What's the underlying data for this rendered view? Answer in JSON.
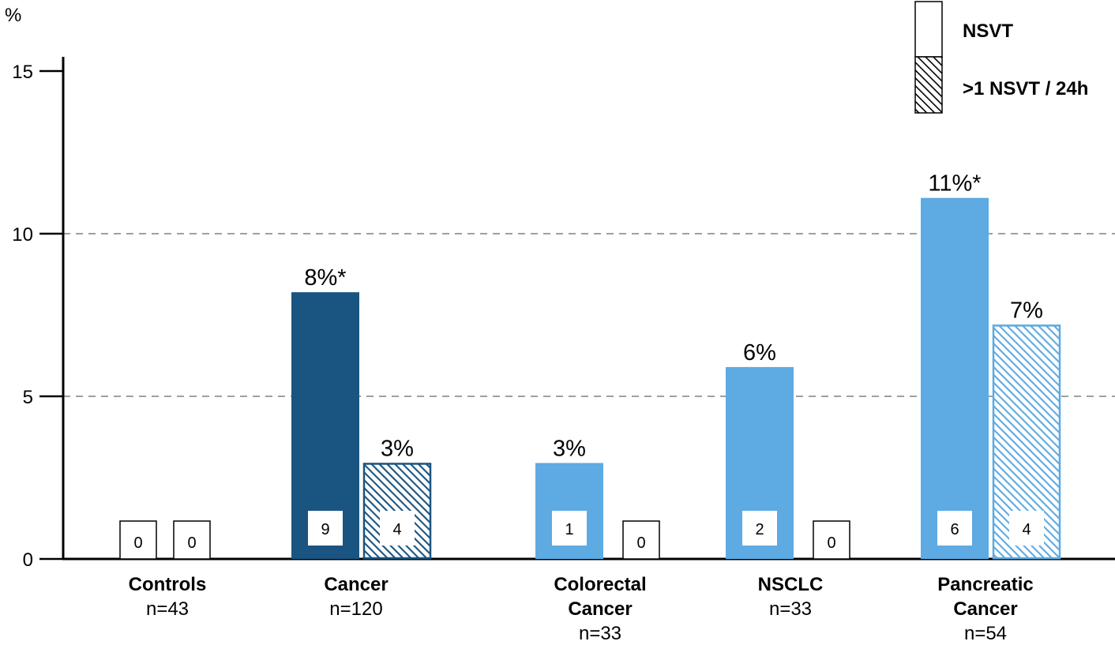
{
  "chart_data": {
    "type": "bar",
    "y_unit": "%",
    "ylim": [
      0,
      15
    ],
    "yticks": [
      0,
      5,
      10,
      15
    ],
    "gridlines": [
      5,
      10
    ],
    "grid": "dashed horizontal at 5 and 10",
    "legend_placement": "top-right",
    "legend": [
      {
        "label": "NSVT",
        "pattern": "solid"
      },
      {
        "label": ">1 NSVT / 24h",
        "pattern": "hatched"
      }
    ],
    "groups": [
      {
        "name": "Controls",
        "n": "n=43",
        "bars": [
          {
            "series": "NSVT",
            "value": 0,
            "count": "0",
            "label": ""
          },
          {
            "series": ">1 NSVT / 24h",
            "value": 0,
            "count": "0",
            "label": ""
          }
        ]
      },
      {
        "name": "Cancer",
        "n": "n=120",
        "bars": [
          {
            "series": "NSVT",
            "value": 8.2,
            "count": "9",
            "label": "8%*"
          },
          {
            "series": ">1 NSVT / 24h",
            "value": 2.95,
            "count": "4",
            "label": "3%"
          }
        ]
      },
      {
        "name": "Colorectal Cancer",
        "n": "n=33",
        "bars": [
          {
            "series": "NSVT",
            "value": 2.95,
            "count": "1",
            "label": "3%"
          },
          {
            "series": ">1 NSVT / 24h",
            "value": 0,
            "count": "0",
            "label": ""
          }
        ]
      },
      {
        "name": "NSCLC",
        "n": "n=33",
        "bars": [
          {
            "series": "NSVT",
            "value": 5.9,
            "count": "2",
            "label": "6%"
          },
          {
            "series": ">1 NSVT / 24h",
            "value": 0,
            "count": "0",
            "label": ""
          }
        ]
      },
      {
        "name": "Pancreatic Cancer",
        "n": "n=54",
        "bars": [
          {
            "series": "NSVT",
            "value": 11.1,
            "count": "6",
            "label": "11%*"
          },
          {
            "series": ">1 NSVT / 24h",
            "value": 7.2,
            "count": "4",
            "label": "7%"
          }
        ]
      }
    ],
    "colors": {
      "cancer": "#1a5480",
      "subtype": "#5eaae2",
      "axis": "#000000",
      "grid": "#808080"
    }
  }
}
